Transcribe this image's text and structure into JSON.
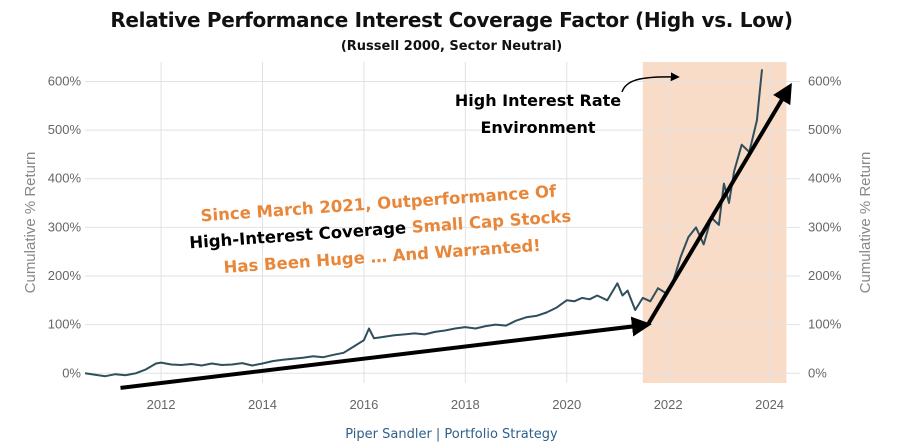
{
  "title": "Relative Performance Interest Coverage Factor (High vs. Low)",
  "subtitle": "(Russell 2000,  Sector Neutral)",
  "footer": "Piper Sandler  |  Portfolio Strategy",
  "annotations": {
    "environment_line1": "High Interest Rate",
    "environment_line2": "Environment",
    "callout_line1": "Since March 2021, Outperformance Of",
    "callout_line2_black": "High-Interest Coverage",
    "callout_line2_orange": " Small Cap Stocks",
    "callout_line3": "Has Been Huge … And Warranted!"
  },
  "colors": {
    "series": "#2f4f5c",
    "shade": "#f9dcc8",
    "callout_orange": "#e8873a",
    "grid": "#e2e2e2",
    "axis_text": "#666666"
  },
  "chart_data": {
    "type": "line",
    "ylabel_left": "Cumulative % Return",
    "ylabel_right": "Cumulative % Return",
    "xlim": [
      2010.5,
      2024.6
    ],
    "ylim": [
      -20,
      640
    ],
    "x_ticks": [
      2012,
      2014,
      2016,
      2018,
      2020,
      2022,
      2024
    ],
    "x_tick_labels": [
      "2012",
      "2014",
      "2016",
      "2018",
      "2020",
      "2022",
      "2024"
    ],
    "y_ticks": [
      0,
      100,
      200,
      300,
      400,
      500,
      600
    ],
    "y_tick_labels": [
      "0%",
      "100%",
      "200%",
      "300%",
      "400%",
      "500%",
      "600%"
    ],
    "grid": true,
    "shaded_region": {
      "x_start": "2021-07",
      "x_end": "2024-05",
      "label": "High Interest Rate Environment"
    },
    "series": [
      {
        "x": [
          2010.5,
          2010.7,
          2010.9,
          2011.1,
          2011.3,
          2011.5,
          2011.7,
          2011.9,
          2012.0,
          2012.2,
          2012.4,
          2012.6,
          2012.8,
          2013.0,
          2013.2,
          2013.4,
          2013.6,
          2013.8,
          2014.0,
          2014.2,
          2014.4,
          2014.6,
          2014.8,
          2015.0,
          2015.2,
          2015.4,
          2015.6,
          2015.8,
          2016.0,
          2016.1,
          2016.2,
          2016.4,
          2016.6,
          2016.8,
          2017.0,
          2017.2,
          2017.4,
          2017.6,
          2017.8,
          2018.0,
          2018.2,
          2018.4,
          2018.6,
          2018.8,
          2019.0,
          2019.2,
          2019.4,
          2019.6,
          2019.8,
          2020.0,
          2020.15,
          2020.3,
          2020.45,
          2020.6,
          2020.8,
          2021.0,
          2021.1,
          2021.2,
          2021.35,
          2021.5,
          2021.65,
          2021.8,
          2021.95,
          2022.1,
          2022.25,
          2022.4,
          2022.55,
          2022.7,
          2022.85,
          2023.0,
          2023.1,
          2023.2,
          2023.3,
          2023.45,
          2023.6,
          2023.75,
          2023.85
        ],
        "y": [
          0,
          -3,
          -6,
          -2,
          -4,
          0,
          8,
          20,
          22,
          18,
          17,
          19,
          16,
          20,
          17,
          18,
          21,
          16,
          20,
          25,
          28,
          30,
          32,
          35,
          33,
          38,
          42,
          55,
          68,
          92,
          72,
          75,
          78,
          80,
          82,
          80,
          85,
          88,
          92,
          95,
          92,
          97,
          100,
          98,
          108,
          115,
          118,
          125,
          135,
          150,
          148,
          155,
          152,
          160,
          150,
          185,
          160,
          170,
          130,
          155,
          148,
          175,
          165,
          190,
          240,
          280,
          300,
          265,
          320,
          305,
          390,
          350,
          415,
          470,
          455,
          520,
          625
        ]
      }
    ],
    "trend_arrows": [
      {
        "from": [
          2011.2,
          -30
        ],
        "to": [
          2021.6,
          100
        ]
      },
      {
        "from": [
          2021.6,
          100
        ],
        "to": [
          2024.4,
          590
        ]
      }
    ]
  }
}
